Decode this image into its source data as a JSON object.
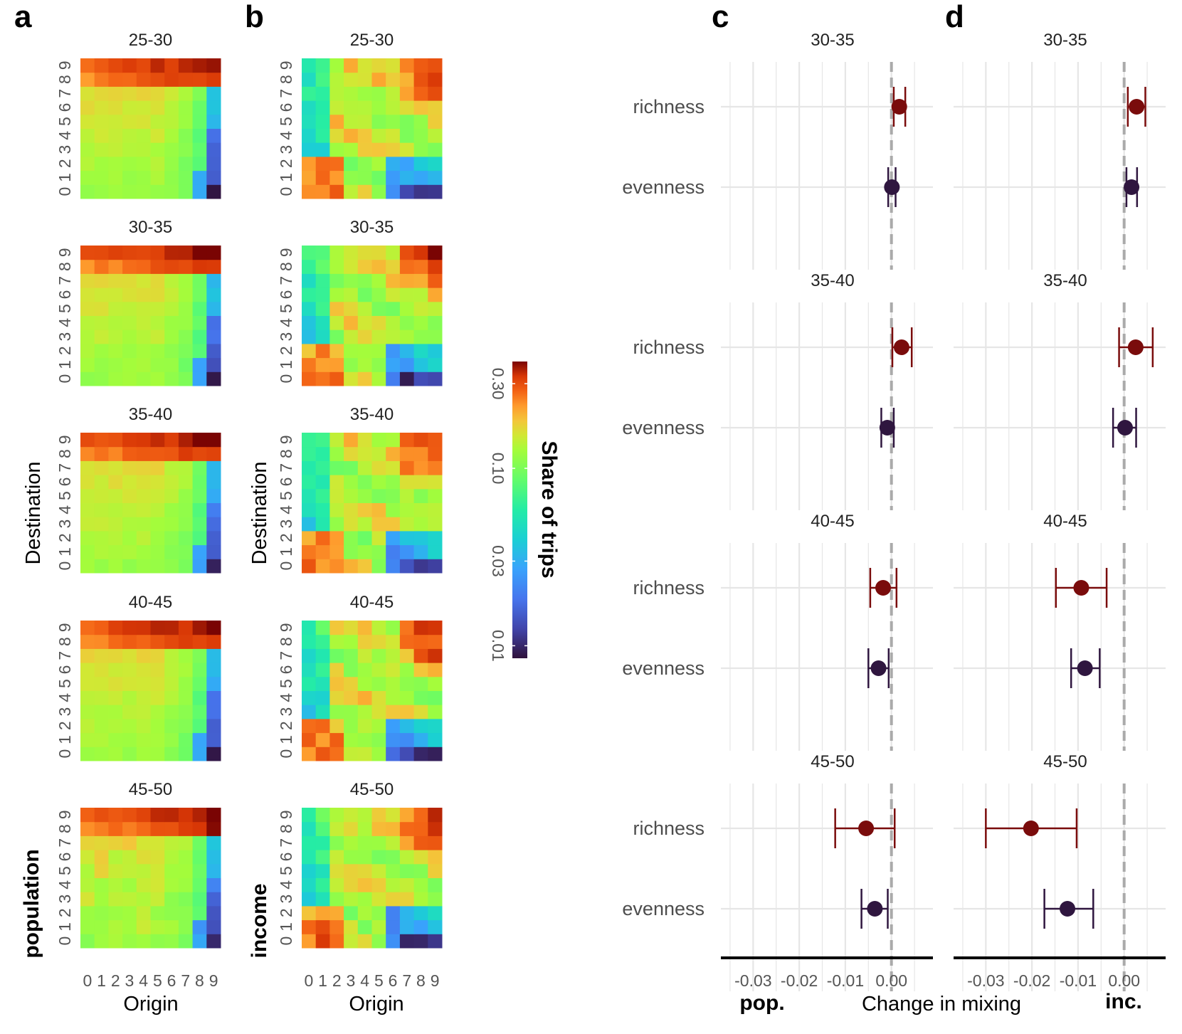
{
  "panel_labels": [
    "a",
    "b",
    "c",
    "d"
  ],
  "chart_data": [
    {
      "type": "heatmap",
      "panel": "a",
      "tag": "population",
      "xlabel": "Origin",
      "ylabel": "Destination",
      "x_ticks": [
        "0",
        "1",
        "2",
        "3",
        "4",
        "5",
        "6",
        "7",
        "8",
        "9"
      ],
      "y_ticks": [
        "0",
        "1",
        "2",
        "3",
        "4",
        "5",
        "6",
        "7",
        "8",
        "9"
      ],
      "facets": [
        "25-30",
        "30-35",
        "35-40",
        "40-45",
        "45-50"
      ],
      "note": "cell values approximate log share of trips per origin/destination decile (0.01-0.30)"
    },
    {
      "type": "heatmap",
      "panel": "b",
      "tag": "income",
      "xlabel": "Origin",
      "ylabel": "Destination",
      "x_ticks": [
        "0",
        "1",
        "2",
        "3",
        "4",
        "5",
        "6",
        "7",
        "8",
        "9"
      ],
      "y_ticks": [
        "0",
        "1",
        "2",
        "3",
        "4",
        "5",
        "6",
        "7",
        "8",
        "9"
      ],
      "facets": [
        "25-30",
        "30-35",
        "35-40",
        "40-45",
        "45-50"
      ]
    },
    {
      "type": "colorbar",
      "title": "Share of trips",
      "ticks": [
        0.01,
        0.03,
        0.1,
        0.3
      ],
      "tick_labels": [
        "0.01",
        "0.03",
        "0.10",
        "0.30"
      ],
      "scale": "log",
      "range": [
        0.0085,
        0.4
      ]
    },
    {
      "type": "scatter",
      "subtype": "point-range",
      "panel": "c",
      "tag": "pop.",
      "xlabel": "Change in mixing",
      "x_ticks": [
        -0.03,
        -0.02,
        -0.01,
        0.0
      ],
      "x_tick_labels": [
        "-0.03",
        "-0.02",
        "-0.01",
        "0.00"
      ],
      "xlim": [
        -0.037,
        0.009
      ],
      "categories": [
        "richness",
        "evenness"
      ],
      "facets": [
        {
          "title": "30-35",
          "points": [
            {
              "metric": "richness",
              "est": 0.0017,
              "lo": 0.0005,
              "hi": 0.003
            },
            {
              "metric": "evenness",
              "est": 0.0001,
              "lo": -0.0007,
              "hi": 0.0009
            }
          ]
        },
        {
          "title": "35-40",
          "points": [
            {
              "metric": "richness",
              "est": 0.0022,
              "lo": 0.0002,
              "hi": 0.0044
            },
            {
              "metric": "evenness",
              "est": -0.0009,
              "lo": -0.0022,
              "hi": 0.0005
            }
          ]
        },
        {
          "title": "40-45",
          "points": [
            {
              "metric": "richness",
              "est": -0.0018,
              "lo": -0.0046,
              "hi": 0.0011
            },
            {
              "metric": "evenness",
              "est": -0.0028,
              "lo": -0.005,
              "hi": -0.0006
            }
          ]
        },
        {
          "title": "45-50",
          "points": [
            {
              "metric": "richness",
              "est": -0.0055,
              "lo": -0.0122,
              "hi": 0.0007
            },
            {
              "metric": "evenness",
              "est": -0.0036,
              "lo": -0.0065,
              "hi": -0.0008
            }
          ]
        }
      ]
    },
    {
      "type": "scatter",
      "subtype": "point-range",
      "panel": "d",
      "tag": "inc.",
      "xlabel": "Change in mixing",
      "x_ticks": [
        -0.03,
        -0.02,
        -0.01,
        0.0
      ],
      "x_tick_labels": [
        "-0.03",
        "-0.02",
        "-0.01",
        "0.00"
      ],
      "xlim": [
        -0.037,
        0.009
      ],
      "categories": [
        "richness",
        "evenness"
      ],
      "facets": [
        {
          "title": "30-35",
          "points": [
            {
              "metric": "richness",
              "est": 0.0027,
              "lo": 0.0008,
              "hi": 0.0046
            },
            {
              "metric": "evenness",
              "est": 0.0016,
              "lo": 0.0005,
              "hi": 0.0028
            }
          ]
        },
        {
          "title": "35-40",
          "points": [
            {
              "metric": "richness",
              "est": 0.0025,
              "lo": -0.0011,
              "hi": 0.0062
            },
            {
              "metric": "evenness",
              "est": 0.0002,
              "lo": -0.0024,
              "hi": 0.0026
            }
          ]
        },
        {
          "title": "40-45",
          "points": [
            {
              "metric": "richness",
              "est": -0.0093,
              "lo": -0.0148,
              "hi": -0.0038
            },
            {
              "metric": "evenness",
              "est": -0.0085,
              "lo": -0.0115,
              "hi": -0.0053
            }
          ]
        },
        {
          "title": "45-50",
          "points": [
            {
              "metric": "richness",
              "est": -0.0202,
              "lo": -0.03,
              "hi": -0.0103
            },
            {
              "metric": "evenness",
              "est": -0.0123,
              "lo": -0.0173,
              "hi": -0.0067
            }
          ]
        }
      ]
    }
  ],
  "colors": {
    "richness": "#7a0c0c",
    "evenness": "#2f163f",
    "zero_line": "#aaaaaa",
    "grid": "#e6e6e6"
  }
}
